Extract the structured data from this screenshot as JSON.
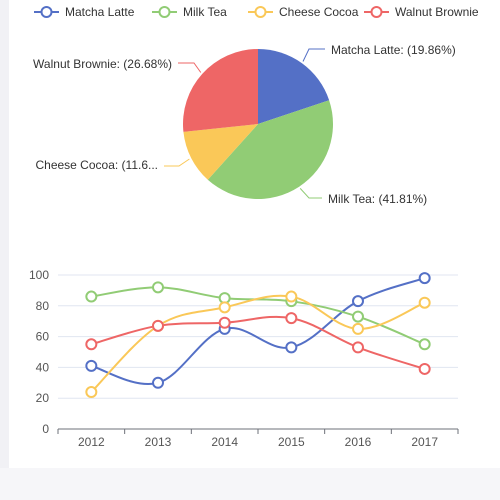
{
  "colors": {
    "matcha_latte": "#5470c6",
    "milk_tea": "#91cc75",
    "cheese_cocoa": "#fac858",
    "walnut_brownie": "#ee6666",
    "axis": "#6e7079",
    "grid": "#e0e6f1"
  },
  "legend": [
    {
      "name": "Matcha Latte",
      "color": "#5470c6",
      "icon": "circle-line-icon"
    },
    {
      "name": "Milk Tea",
      "color": "#91cc75",
      "icon": "circle-line-icon"
    },
    {
      "name": "Cheese Cocoa",
      "color": "#fac858",
      "icon": "circle-line-icon"
    },
    {
      "name": "Walnut Brownie",
      "color": "#ee6666",
      "icon": "circle-line-icon"
    }
  ],
  "chart_data": [
    {
      "type": "pie",
      "legend_position": "top",
      "slices": [
        {
          "name": "Matcha Latte",
          "value": 19.86,
          "label": "Matcha Latte:  (19.86%)",
          "color": "#5470c6"
        },
        {
          "name": "Milk Tea",
          "value": 41.81,
          "label": "Milk Tea:  (41.81%)",
          "color": "#91cc75"
        },
        {
          "name": "Cheese Cocoa",
          "value": 11.65,
          "label": "Cheese Cocoa:  (11.6...",
          "color": "#fac858"
        },
        {
          "name": "Walnut Brownie",
          "value": 26.68,
          "label": "Walnut Brownie:  (26.68%)",
          "color": "#ee6666"
        }
      ]
    },
    {
      "type": "line",
      "smooth": true,
      "x": [
        "2012",
        "2013",
        "2014",
        "2015",
        "2016",
        "2017"
      ],
      "ylim": [
        0,
        100
      ],
      "yticks": [
        "0",
        "20",
        "40",
        "60",
        "80",
        "100"
      ],
      "grid": true,
      "series": [
        {
          "name": "Matcha Latte",
          "color": "#5470c6",
          "values": [
            41,
            30,
            65,
            53,
            83,
            98
          ]
        },
        {
          "name": "Milk Tea",
          "color": "#91cc75",
          "values": [
            86,
            92,
            85,
            83,
            73,
            55
          ]
        },
        {
          "name": "Cheese Cocoa",
          "color": "#fac858",
          "values": [
            24,
            67,
            79,
            86,
            65,
            82
          ]
        },
        {
          "name": "Walnut Brownie",
          "color": "#ee6666",
          "values": [
            55,
            67,
            69,
            72,
            53,
            39
          ]
        }
      ]
    }
  ]
}
